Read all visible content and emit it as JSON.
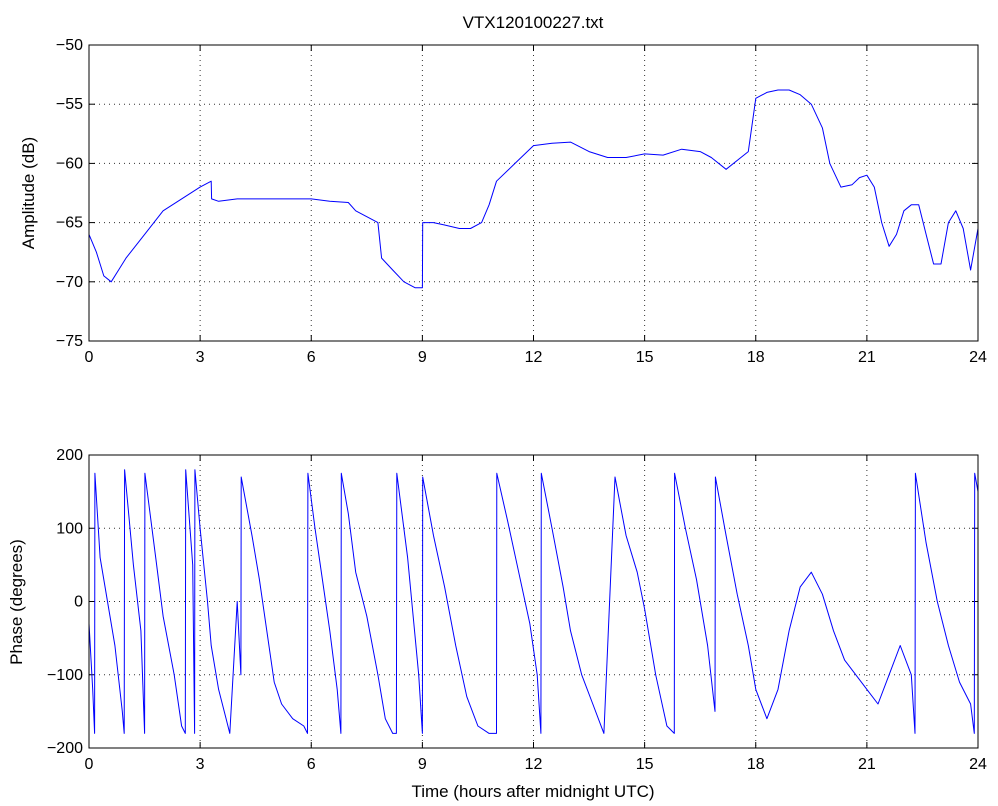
{
  "chart_data": [
    {
      "type": "line",
      "title": "VTX120100227.txt",
      "xlabel": "",
      "ylabel": "Amplitude (dB)",
      "xlim": [
        0,
        24
      ],
      "ylim": [
        -75,
        -50
      ],
      "xticks": [
        0,
        3,
        6,
        9,
        12,
        15,
        18,
        21,
        24
      ],
      "yticks": [
        -75,
        -70,
        -65,
        -60,
        -55,
        -50
      ],
      "grid": true,
      "color": "#0000ff",
      "series": [
        {
          "x": [
            0,
            0.2,
            0.4,
            0.6,
            0.8,
            1.0,
            1.5,
            2.0,
            2.5,
            3.0,
            3.3,
            3.31,
            3.5,
            4.0,
            5.0,
            6.0,
            6.5,
            7.0,
            7.2,
            7.5,
            7.8,
            7.9,
            8.2,
            8.5,
            8.8,
            9.0,
            9.01,
            9.3,
            9.6,
            10.0,
            10.3,
            10.6,
            10.8,
            11.0,
            11.5,
            12.0,
            12.5,
            13.0,
            13.5,
            14.0,
            14.5,
            15.0,
            15.5,
            16.0,
            16.5,
            16.8,
            17.2,
            17.6,
            17.8,
            18.0,
            18.3,
            18.6,
            18.9,
            19.2,
            19.5,
            19.8,
            20.0,
            20.3,
            20.6,
            20.8,
            21.0,
            21.2,
            21.4,
            21.6,
            21.8,
            22.0,
            22.2,
            22.4,
            22.6,
            22.8,
            23.0,
            23.2,
            23.4,
            23.6,
            23.8,
            24.0
          ],
          "y": [
            -66,
            -67.5,
            -69.5,
            -70,
            -69,
            -68,
            -66,
            -64,
            -63,
            -62,
            -61.5,
            -63,
            -63.2,
            -63,
            -63,
            -63,
            -63.2,
            -63.3,
            -64,
            -64.5,
            -65,
            -68,
            -69,
            -70,
            -70.5,
            -70.5,
            -65,
            -65,
            -65.2,
            -65.5,
            -65.5,
            -65,
            -63.5,
            -61.5,
            -60,
            -58.5,
            -58.3,
            -58.2,
            -59,
            -59.5,
            -59.5,
            -59.2,
            -59.3,
            -58.8,
            -59,
            -59.5,
            -60.5,
            -59.5,
            -59,
            -54.5,
            -54,
            -53.8,
            -53.8,
            -54.2,
            -55,
            -57,
            -60,
            -62,
            -61.8,
            -61.2,
            -61,
            -62,
            -65,
            -67,
            -66,
            -64,
            -63.5,
            -63.5,
            -66,
            -68.5,
            -68.5,
            -65,
            -64,
            -65.5,
            -69,
            -65.5
          ]
        }
      ]
    },
    {
      "type": "line",
      "title": "",
      "xlabel": "Time (hours after midnight UTC)",
      "ylabel": "Phase (degrees)",
      "xlim": [
        0,
        24
      ],
      "ylim": [
        -200,
        200
      ],
      "xticks": [
        0,
        3,
        6,
        9,
        12,
        15,
        18,
        21,
        24
      ],
      "yticks": [
        -200,
        -100,
        0,
        100,
        200
      ],
      "grid": true,
      "color": "#0000ff",
      "series": [
        {
          "x": [
            0,
            0.1,
            0.15,
            0.16,
            0.3,
            0.5,
            0.7,
            0.9,
            0.95,
            0.96,
            1.2,
            1.4,
            1.5,
            1.51,
            1.8,
            2.0,
            2.3,
            2.5,
            2.6,
            2.61,
            2.8,
            2.85,
            2.86,
            3.0,
            3.2,
            3.3,
            3.5,
            3.7,
            3.8,
            4.0,
            4.1,
            4.11,
            4.4,
            4.6,
            4.8,
            5.0,
            5.2,
            5.5,
            5.8,
            5.9,
            5.91,
            6.1,
            6.3,
            6.5,
            6.7,
            6.8,
            6.81,
            7.0,
            7.2,
            7.5,
            7.8,
            8.0,
            8.2,
            8.3,
            8.31,
            8.6,
            8.9,
            9.0,
            9.01,
            9.3,
            9.6,
            9.9,
            10.2,
            10.5,
            10.8,
            11.0,
            11.01,
            11.3,
            11.6,
            11.9,
            12.1,
            12.2,
            12.21,
            12.5,
            12.8,
            13.0,
            13.3,
            13.6,
            13.9,
            14.2,
            14.5,
            14.8,
            15.0,
            15.3,
            15.6,
            15.8,
            15.81,
            16.1,
            16.4,
            16.7,
            16.9,
            16.91,
            17.2,
            17.5,
            17.8,
            18.0,
            18.3,
            18.6,
            18.9,
            19.2,
            19.5,
            19.8,
            20.1,
            20.4,
            20.7,
            21.0,
            21.3,
            21.6,
            21.9,
            22.2,
            22.3,
            22.31,
            22.6,
            22.9,
            23.2,
            23.5,
            23.8,
            23.9,
            23.91,
            24.0
          ],
          "y": [
            -30,
            -120,
            -180,
            175,
            60,
            0,
            -60,
            -150,
            -180,
            180,
            50,
            -40,
            -180,
            175,
            60,
            -20,
            -100,
            -170,
            -180,
            180,
            50,
            -180,
            180,
            100,
            0,
            -60,
            -120,
            -160,
            -180,
            0,
            -100,
            170,
            90,
            30,
            -40,
            -110,
            -140,
            -160,
            -170,
            -180,
            175,
            100,
            30,
            -40,
            -120,
            -180,
            175,
            120,
            40,
            -20,
            -100,
            -160,
            -180,
            -180,
            175,
            60,
            -100,
            -180,
            170,
            90,
            20,
            -60,
            -130,
            -170,
            -180,
            -180,
            175,
            110,
            40,
            -30,
            -100,
            -180,
            175,
            100,
            20,
            -40,
            -100,
            -140,
            -180,
            170,
            90,
            40,
            -10,
            -100,
            -170,
            -180,
            175,
            100,
            30,
            -60,
            -150,
            170,
            90,
            10,
            -60,
            -120,
            -160,
            -120,
            -40,
            20,
            40,
            10,
            -40,
            -80,
            -100,
            -120,
            -140,
            -100,
            -60,
            -100,
            -180,
            175,
            80,
            0,
            -60,
            -110,
            -140,
            -180,
            175,
            150
          ]
        }
      ]
    }
  ]
}
